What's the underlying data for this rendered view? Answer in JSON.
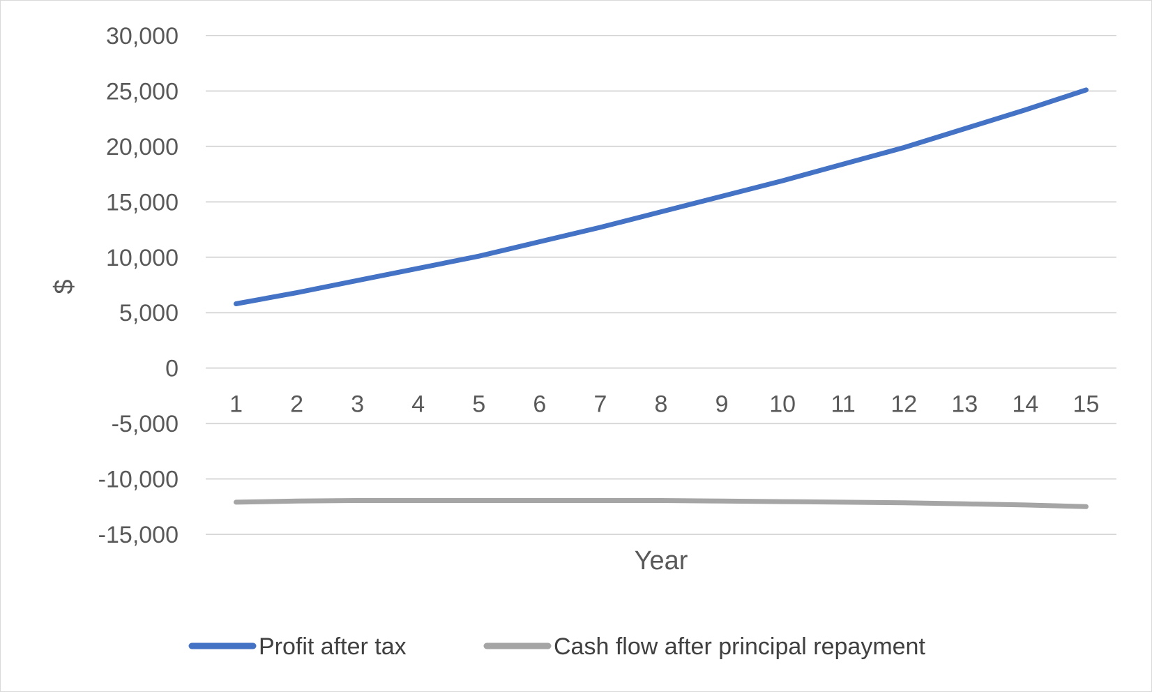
{
  "chart_data": {
    "type": "line",
    "title": "",
    "xlabel": "Year",
    "ylabel": "$",
    "ylim": [
      -15000,
      30000
    ],
    "y_ticks": [
      30000,
      25000,
      20000,
      15000,
      10000,
      5000,
      0,
      -5000,
      -10000,
      -15000
    ],
    "y_tick_labels": [
      "30,000",
      "25,000",
      "20,000",
      "15,000",
      "10,000",
      "5,000",
      "0",
      "-5,000",
      "-10,000",
      "-15,000"
    ],
    "categories": [
      "1",
      "2",
      "3",
      "4",
      "5",
      "6",
      "7",
      "8",
      "9",
      "10",
      "11",
      "12",
      "13",
      "14",
      "15"
    ],
    "grid": true,
    "legend_position": "bottom",
    "series": [
      {
        "name": "Profit after tax",
        "color": "#4472C4",
        "values": [
          5800,
          6800,
          7900,
          9000,
          10100,
          11400,
          12700,
          14100,
          15500,
          16900,
          18400,
          19900,
          21600,
          23300,
          25100
        ]
      },
      {
        "name": "Cash flow after principal repayment",
        "color": "#A5A5A5",
        "values": [
          -12100,
          -12000,
          -11950,
          -11950,
          -11950,
          -11950,
          -11950,
          -11950,
          -12000,
          -12050,
          -12100,
          -12150,
          -12250,
          -12350,
          -12500
        ]
      }
    ]
  }
}
